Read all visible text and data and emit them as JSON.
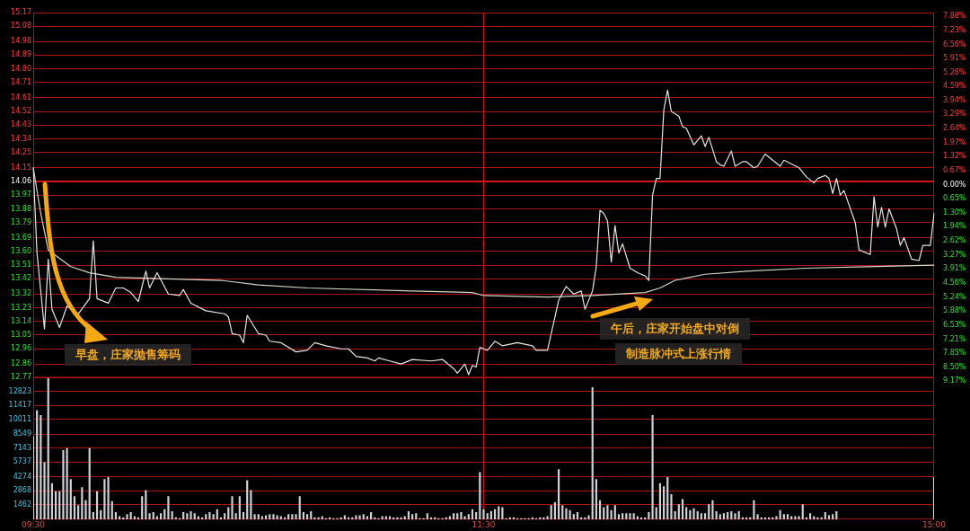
{
  "chart_data": [
    {
      "type": "line",
      "ylim": [
        12.77,
        15.17
      ],
      "categories": [
        "09:30",
        null,
        null,
        null,
        null,
        null,
        null,
        null,
        null,
        null,
        null,
        null,
        null,
        null,
        null,
        null,
        null,
        null,
        null,
        null,
        null,
        null,
        null,
        null,
        null,
        null,
        null,
        null,
        null,
        null,
        null,
        null,
        null,
        null,
        null,
        null,
        null,
        null,
        null,
        null,
        null,
        null,
        null,
        null,
        null,
        null,
        null,
        null,
        null,
        null,
        null,
        null,
        null,
        null,
        null,
        null,
        null,
        null,
        null,
        null,
        null,
        null,
        null,
        null,
        null,
        null,
        null,
        null,
        null,
        null,
        null,
        null,
        null,
        null,
        null,
        null,
        null,
        null,
        null,
        null,
        null,
        null,
        null,
        null,
        null,
        null,
        null,
        null,
        null,
        null,
        null,
        null,
        null,
        null,
        null,
        null,
        null,
        null,
        null,
        null,
        null,
        null,
        null,
        null,
        null,
        null,
        null,
        null,
        null,
        null,
        null,
        null,
        null,
        null,
        null,
        null,
        null,
        null,
        null,
        null,
        "11:30",
        null,
        null,
        null,
        null,
        null,
        null,
        null,
        null,
        null,
        null,
        null,
        null,
        null,
        null,
        null,
        null,
        null,
        null,
        null,
        null,
        null,
        null,
        null,
        null,
        null,
        null,
        null,
        null,
        null,
        null,
        null,
        null,
        null,
        null,
        null,
        null,
        null,
        null,
        null,
        null,
        null,
        null,
        null,
        null,
        null,
        null,
        null,
        null,
        null,
        null,
        null,
        null,
        null,
        null,
        null,
        null,
        null,
        null,
        null,
        null,
        null,
        null,
        null,
        null,
        null,
        null,
        null,
        null,
        null,
        null,
        null,
        null,
        null,
        null,
        null,
        null,
        null,
        null,
        null,
        null,
        null,
        null,
        null,
        null,
        null,
        null,
        null,
        null,
        null,
        null,
        null,
        null,
        null,
        null,
        null,
        null,
        null,
        null,
        null,
        null,
        null,
        null,
        null,
        null,
        null,
        null,
        null,
        null,
        null,
        null,
        null,
        null,
        null,
        null,
        null,
        null,
        null,
        null,
        null,
        "15:00"
      ],
      "yticks": [
        12.77,
        12.86,
        12.96,
        13.05,
        13.14,
        13.23,
        13.32,
        13.42,
        13.51,
        {
          "value": 13.6,
          "label": "13.60"
        },
        13.69,
        13.79,
        13.88,
        13.97,
        14.06,
        14.15,
        14.25,
        14.34,
        14.43,
        14.52,
        14.61,
        14.71,
        {
          "value": 14.8,
          "label": "14.80"
        },
        14.89,
        14.98,
        15.08,
        15.17
      ],
      "y2lim": [
        -9.17,
        7.88
      ],
      "y2ticks": [
        {
          "value": -9.17,
          "label": "9.17%"
        },
        {
          "value": -8.5,
          "label": "8.50%"
        },
        {
          "value": -7.85,
          "label": "7.85%"
        },
        {
          "value": -7.21,
          "label": "7.21%"
        },
        {
          "value": -6.53,
          "label": "6.53%"
        },
        {
          "value": -5.88,
          "label": "5.88%"
        },
        {
          "value": -5.24,
          "label": "5.24%"
        },
        {
          "value": -4.56,
          "label": "4.56%"
        },
        {
          "value": -3.91,
          "label": "3.91%"
        },
        {
          "value": -3.27,
          "label": "3.27%"
        },
        {
          "value": -2.62,
          "label": "2.62%"
        },
        {
          "value": -1.94,
          "label": "1.94%"
        },
        {
          "value": -1.3,
          "label": "1.30%"
        },
        {
          "value": -0.65,
          "label": "0.65%"
        },
        {
          "value": 0,
          "label": "0.00%"
        },
        {
          "value": 0.67,
          "label": "0.67%"
        },
        {
          "value": 1.32,
          "label": "1.32%"
        },
        {
          "value": 1.97,
          "label": "1.97%"
        },
        {
          "value": 2.64,
          "label": "2.64%"
        },
        {
          "value": 3.29,
          "label": "3.29%"
        },
        {
          "value": 3.94,
          "label": "3.94%"
        },
        {
          "value": 4.59,
          "label": "4.59%"
        },
        {
          "value": 5.26,
          "label": "5.26%"
        },
        {
          "value": 5.91,
          "label": "5.91%"
        },
        {
          "value": 6.56,
          "label": "6.56%"
        },
        {
          "value": 7.23,
          "label": "7.23%"
        },
        {
          "value": 7.88,
          "label": "7.88%"
        }
      ],
      "tick_labels": "y",
      "grid": "y",
      "marker": "none",
      "line_style": "solid",
      "ref_lines": [
        {
          "axis": "y",
          "value": 14.06,
          "color": "#ff1a1a"
        },
        {
          "axis": "x",
          "value": "11:30",
          "color": "#d01010"
        }
      ],
      "annotations": [
        "早盘，庄家抛售筹码",
        "午后，庄家开始盘中对倒",
        "制造脉冲式上涨行情"
      ],
      "series": [
        {
          "color": "#e6e6e6",
          "values": [
            14.15,
            13.59,
            null,
            13.09,
            13.55,
            13.22,
            null,
            13.1,
            null,
            13.24,
            null,
            null,
            13.19,
            null,
            null,
            13.29,
            13.67,
            13.29,
            null,
            null,
            13.26,
            null,
            13.36,
            null,
            13.36,
            null,
            13.33,
            null,
            13.27,
            null,
            13.47,
            13.36,
            null,
            13.46,
            null,
            null,
            13.32,
            null,
            null,
            13.31,
            13.35,
            null,
            13.26,
            null,
            null,
            null,
            13.21,
            null,
            null,
            null,
            null,
            13.19,
            13.17,
            13.06,
            null,
            13.05,
            13.0,
            13.18,
            null,
            null,
            13.06,
            null,
            13.05,
            13.01,
            null,
            null,
            13.0,
            null,
            null,
            null,
            12.94,
            null,
            null,
            12.95,
            null,
            13.0,
            null,
            null,
            12.98,
            null,
            null,
            null,
            12.96,
            null,
            12.96,
            null,
            12.91,
            null,
            null,
            12.9,
            null,
            12.88,
            12.9,
            null,
            null,
            12.88,
            null,
            null,
            12.86,
            null,
            null,
            12.89,
            null,
            null,
            null,
            null,
            12.88,
            null,
            null,
            12.89,
            null,
            null,
            12.83,
            12.8,
            null,
            12.86,
            12.79,
            12.85,
            12.84,
            12.97,
            null,
            12.95,
            null,
            13.01,
            null,
            12.98,
            null,
            null,
            null,
            13.0,
            null,
            null,
            null,
            12.98,
            12.95,
            null,
            null,
            12.95,
            null,
            null,
            13.28,
            null,
            13.37,
            null,
            13.32,
            null,
            13.34,
            13.22,
            null,
            13.34,
            13.5,
            13.87,
            13.85,
            13.8,
            13.53,
            13.77,
            13.59,
            13.65,
            null,
            13.49,
            null,
            13.46,
            null,
            13.44,
            13.41,
            13.97,
            14.08,
            14.08,
            14.53,
            14.66,
            14.52,
            null,
            14.49,
            14.42,
            14.41,
            null,
            14.3,
            14.33,
            14.36,
            14.29,
            14.35,
            null,
            14.19,
            14.17,
            14.16,
            null,
            14.26,
            14.16,
            null,
            14.19,
            14.19,
            null,
            14.15,
            14.16,
            null,
            14.24,
            null,
            14.2,
            null,
            14.16,
            14.2,
            null,
            null,
            null,
            14.15,
            null,
            14.09,
            null,
            14.05,
            14.08,
            null,
            14.1,
            14.08,
            13.98,
            14.08,
            13.97,
            14.0,
            null,
            null,
            13.79,
            13.61,
            null,
            null,
            13.58,
            13.96,
            13.76,
            13.89,
            13.76,
            13.88,
            null,
            13.75,
            13.64,
            13.69,
            null,
            13.55,
            null,
            13.54,
            13.64,
            null,
            13.64,
            13.85
          ]
        },
        {
          "color": "#d6d6c4",
          "values": [
            14.15,
            null,
            13.85,
            null,
            13.61,
            null,
            null,
            null,
            null,
            null,
            13.5,
            null,
            null,
            null,
            null,
            13.46,
            null,
            null,
            null,
            null,
            null,
            null,
            13.43,
            null,
            null,
            null,
            null,
            null,
            null,
            null,
            null,
            null,
            null,
            null,
            null,
            null,
            null,
            null,
            null,
            null,
            null,
            null,
            null,
            null,
            null,
            null,
            null,
            null,
            null,
            null,
            13.41,
            null,
            null,
            null,
            null,
            null,
            null,
            null,
            null,
            null,
            13.38,
            null,
            null,
            null,
            null,
            null,
            null,
            null,
            null,
            null,
            null,
            null,
            null,
            13.36,
            null,
            null,
            null,
            null,
            null,
            null,
            null,
            null,
            null,
            null,
            null,
            null,
            null,
            null,
            null,
            null,
            null,
            null,
            null,
            null,
            null,
            null,
            null,
            null,
            null,
            null,
            null,
            13.34,
            null,
            null,
            null,
            null,
            null,
            null,
            null,
            null,
            null,
            null,
            null,
            null,
            null,
            null,
            null,
            13.33,
            null,
            null,
            13.31,
            null,
            null,
            null,
            null,
            null,
            null,
            null,
            null,
            null,
            null,
            null,
            null,
            null,
            null,
            null,
            null,
            13.3,
            null,
            null,
            null,
            null,
            null,
            null,
            null,
            null,
            null,
            null,
            null,
            13.31,
            null,
            null,
            null,
            null,
            null,
            null,
            null,
            null,
            null,
            null,
            null,
            null,
            null,
            13.33,
            null,
            null,
            null,
            13.36,
            null,
            null,
            null,
            13.41,
            null,
            null,
            null,
            null,
            null,
            null,
            null,
            13.45,
            null,
            null,
            null,
            null,
            null,
            null,
            null,
            null,
            null,
            null,
            13.47,
            null,
            null,
            null,
            null,
            null,
            null,
            null,
            null,
            null,
            null,
            null,
            null,
            null,
            null,
            null,
            13.49,
            null,
            null,
            null,
            null,
            null,
            null,
            null,
            null,
            null,
            null,
            null,
            null,
            null,
            null,
            null,
            13.5,
            null,
            null,
            null,
            null,
            null,
            null,
            null,
            null,
            null,
            null,
            null,
            null,
            null,
            null,
            null,
            null,
            null,
            13.51
          ]
        }
      ]
    },
    {
      "type": "bar",
      "ylim": [
        0,
        14229
      ],
      "yticks": [
        1462,
        2868,
        4274,
        5737,
        7143,
        8549,
        10011,
        11417,
        12823
      ],
      "grid": "y",
      "categories": [
        "09:30",
        null,
        null,
        null,
        null,
        null,
        null,
        null,
        null,
        null,
        null,
        null,
        null,
        null,
        null,
        null,
        null,
        null,
        null,
        null,
        null,
        null,
        null,
        null,
        null,
        null,
        null,
        null,
        null,
        null,
        null,
        null,
        null,
        null,
        null,
        null,
        null,
        null,
        null,
        null,
        null,
        null,
        null,
        null,
        null,
        null,
        null,
        null,
        null,
        null,
        null,
        null,
        null,
        null,
        null,
        null,
        null,
        null,
        null,
        null,
        null,
        null,
        null,
        null,
        null,
        null,
        null,
        null,
        null,
        null,
        null,
        null,
        null,
        null,
        null,
        null,
        null,
        null,
        null,
        null,
        null,
        null,
        null,
        null,
        null,
        null,
        null,
        null,
        null,
        null,
        null,
        null,
        null,
        null,
        null,
        null,
        null,
        null,
        null,
        null,
        null,
        null,
        null,
        null,
        null,
        null,
        null,
        null,
        null,
        null,
        null,
        null,
        null,
        null,
        null,
        null,
        null,
        null,
        null,
        null,
        "11:30",
        null,
        null,
        null,
        null,
        null,
        null,
        null,
        null,
        null,
        null,
        null,
        null,
        null,
        null,
        null,
        null,
        null,
        null,
        null,
        null,
        null,
        null,
        null,
        null,
        null,
        null,
        null,
        null,
        null,
        null,
        null,
        null,
        null,
        null,
        null,
        null,
        null,
        null,
        null,
        null,
        null,
        null,
        null,
        null,
        null,
        null,
        null,
        null,
        null,
        null,
        null,
        null,
        null,
        null,
        null,
        null,
        null,
        null,
        null,
        null,
        null,
        null,
        null,
        null,
        null,
        null,
        null,
        null,
        null,
        null,
        null,
        null,
        null,
        null,
        null,
        null,
        null,
        null,
        null,
        null,
        null,
        null,
        null,
        null,
        null,
        null,
        null,
        null,
        null,
        null,
        null,
        null,
        null,
        null,
        null,
        null,
        null,
        null,
        null,
        null,
        null,
        null,
        null,
        null,
        null,
        null,
        null,
        null,
        null,
        null,
        null,
        null,
        null,
        null,
        null,
        null,
        null,
        null,
        null,
        "15:00"
      ],
      "ref_lines": [
        {
          "axis": "x",
          "value": "11:30",
          "color": "#d01010"
        }
      ],
      "series": [
        {
          "color": "#d0d4d8",
          "values": [
            8300,
            10900,
            10400,
            5700,
            14100,
            3600,
            2800,
            2800,
            6900,
            7100,
            4000,
            2300,
            1400,
            3200,
            1900,
            7100,
            700,
            2800,
            900,
            4000,
            4200,
            1800,
            700,
            300,
            200,
            500,
            700,
            300,
            200,
            2300,
            2900,
            600,
            700,
            300,
            600,
            1000,
            2300,
            800,
            200,
            100,
            700,
            600,
            800,
            600,
            300,
            200,
            500,
            700,
            500,
            1000,
            200,
            600,
            1200,
            2300,
            600,
            2300,
            700,
            3900,
            2900,
            500,
            500,
            300,
            400,
            500,
            500,
            400,
            300,
            200,
            500,
            500,
            500,
            2300,
            700,
            500,
            800,
            200,
            200,
            300,
            100,
            200,
            100,
            100,
            200,
            400,
            200,
            200,
            400,
            400,
            500,
            300,
            700,
            200,
            100,
            300,
            300,
            300,
            200,
            200,
            200,
            300,
            800,
            500,
            600,
            100,
            100,
            600,
            200,
            200,
            100,
            100,
            200,
            300,
            600,
            600,
            700,
            300,
            500,
            1000,
            700,
            4700,
            1000,
            600,
            800,
            1000,
            1300,
            1200,
            100,
            200,
            200,
            100,
            100,
            100,
            100,
            200,
            100,
            200,
            200,
            300,
            1400,
            1700,
            5000,
            1400,
            1100,
            900,
            500,
            700,
            200,
            200,
            400,
            13200,
            4000,
            1900,
            1200,
            1400,
            900,
            1400,
            500,
            600,
            600,
            600,
            600,
            300,
            200,
            200,
            700,
            10400,
            1200,
            3600,
            3300,
            4200,
            2500,
            800,
            1500,
            2000,
            1200,
            900,
            1100,
            800,
            600,
            600,
            1500,
            1900,
            800,
            500,
            600,
            700,
            800,
            600,
            800,
            200,
            200,
            200,
            1900,
            500,
            200,
            200,
            200,
            200,
            300,
            900,
            500,
            500,
            300,
            300,
            300,
            1500,
            200,
            600,
            300,
            200,
            200,
            700,
            400,
            500,
            800,
            null,
            null,
            null,
            null,
            null,
            null,
            null,
            null,
            null,
            null,
            null,
            null,
            null,
            null,
            null,
            null,
            null,
            null,
            null,
            null,
            null,
            null,
            null,
            null,
            null,
            4200
          ]
        }
      ]
    }
  ]
}
